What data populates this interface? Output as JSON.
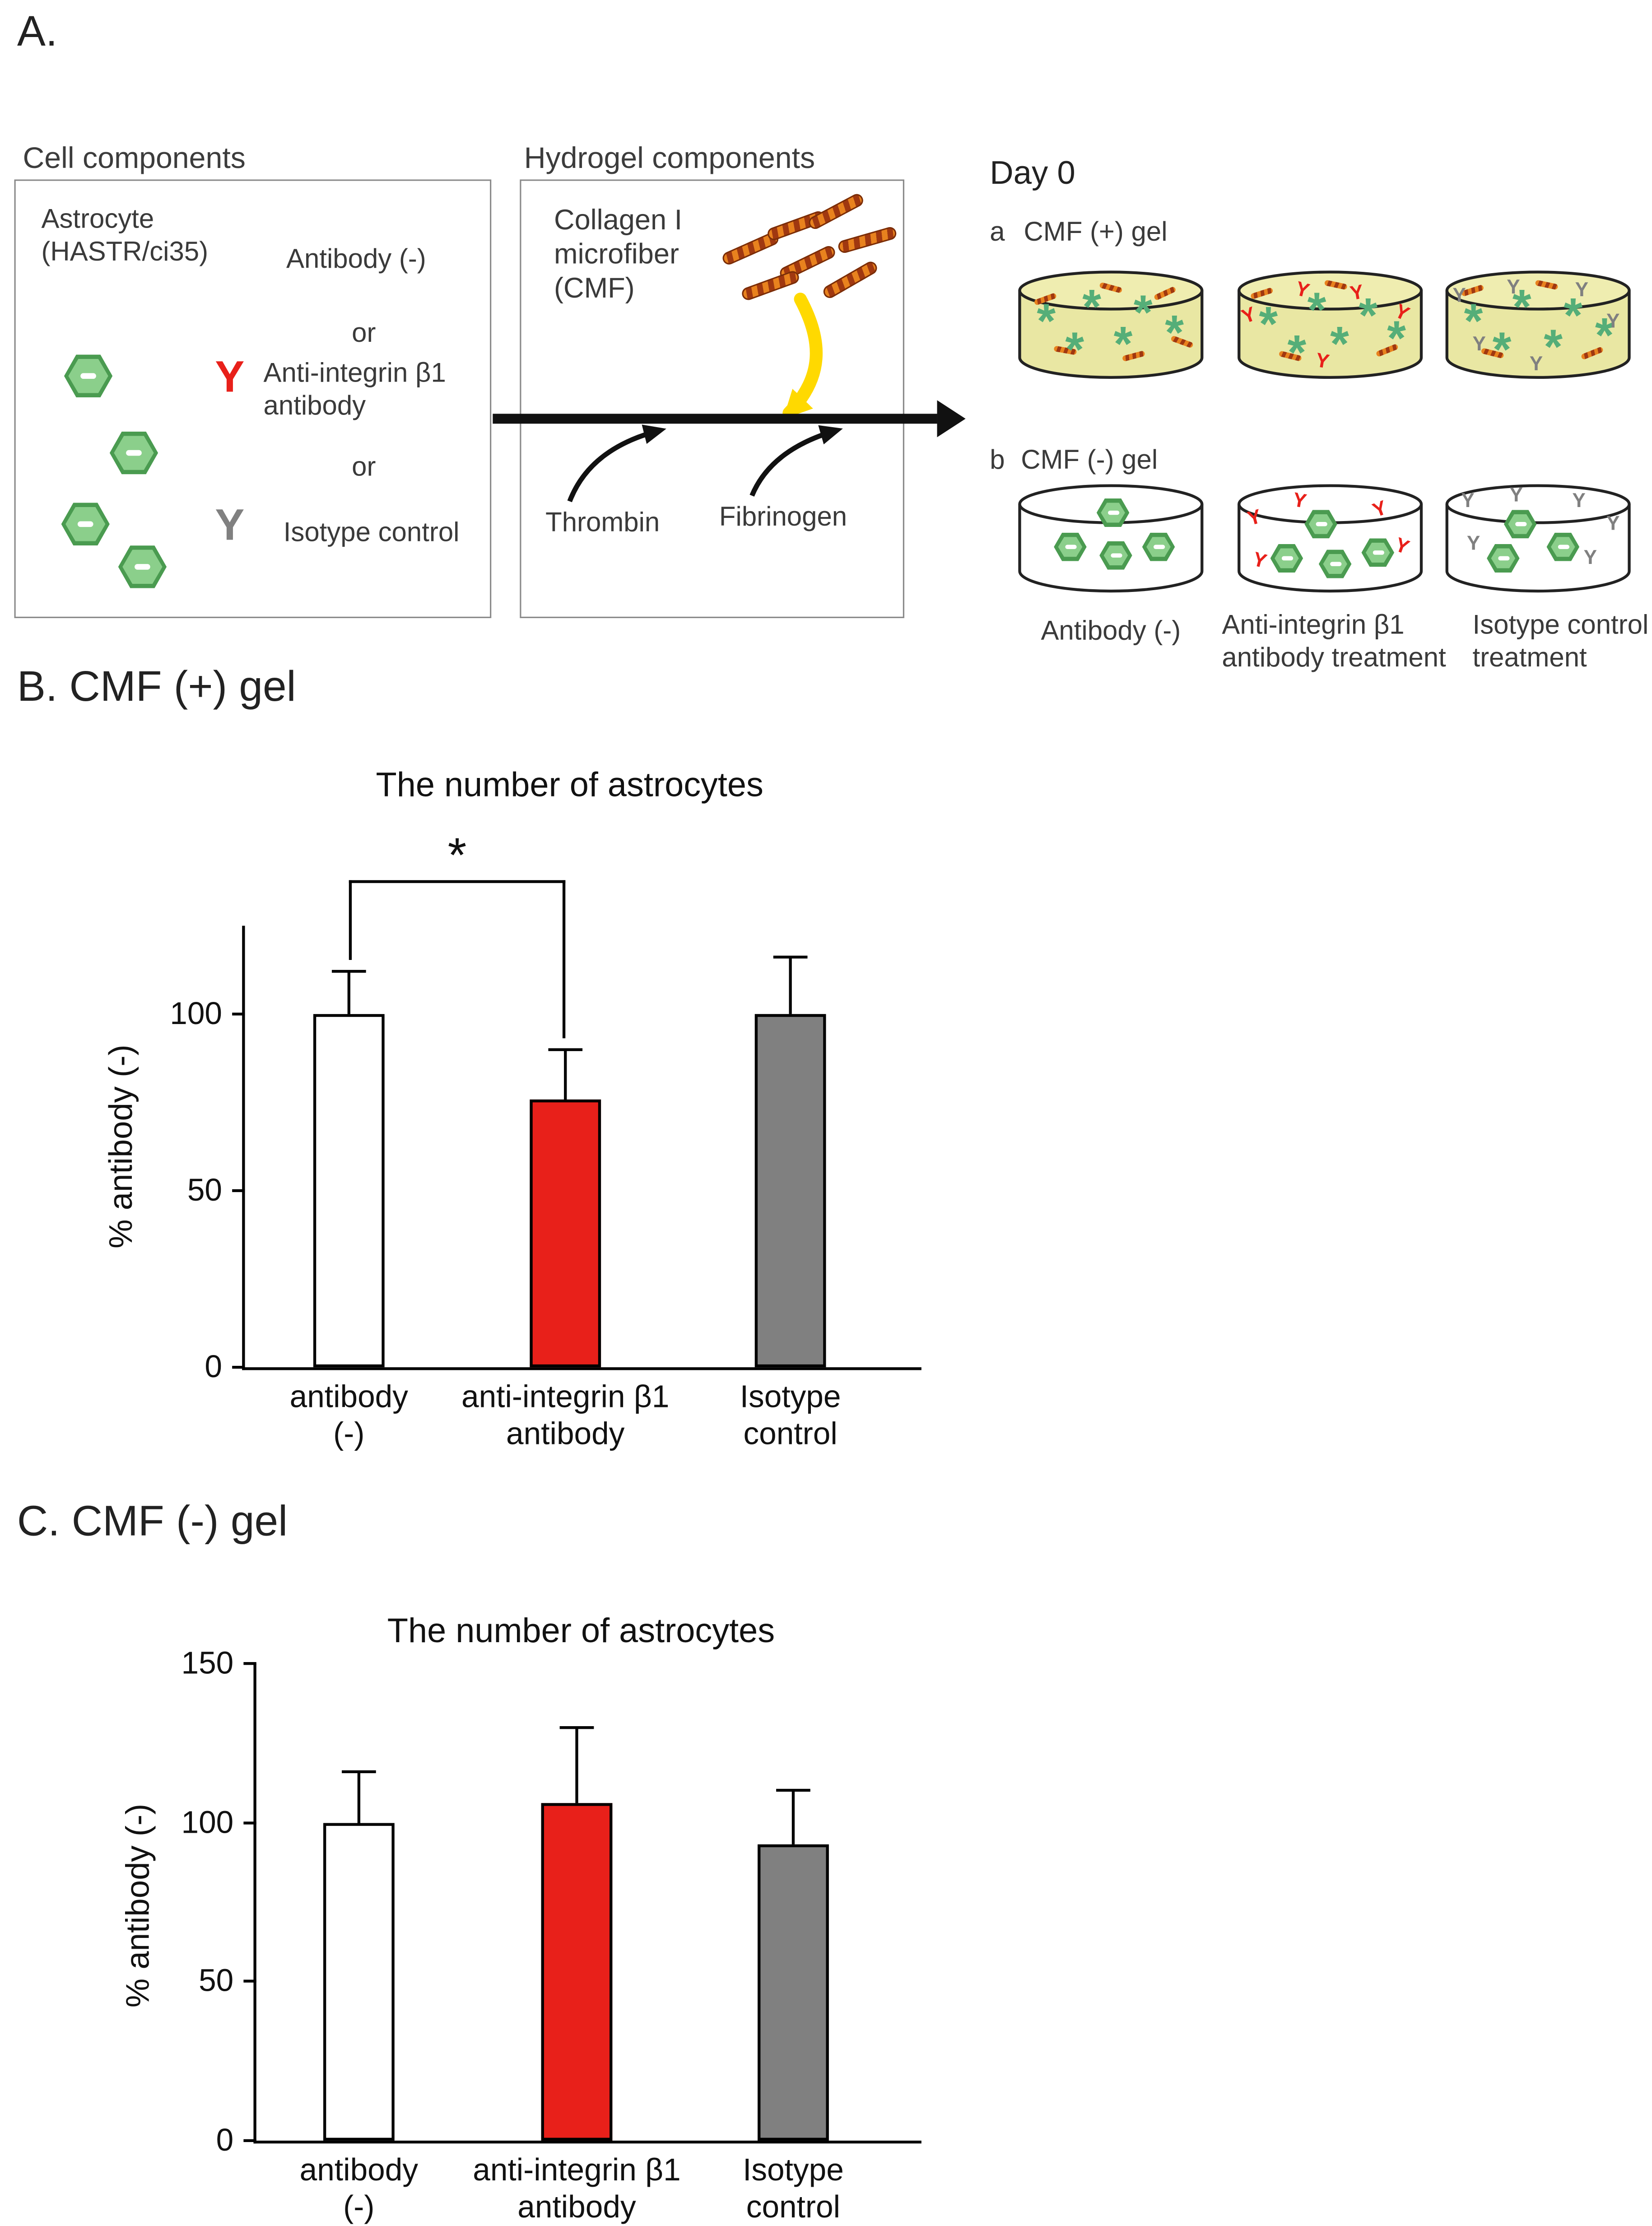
{
  "colors": {
    "accent_red": "#e8201a",
    "accent_gray": "#808080",
    "cell_green": "#8bcf8b",
    "dish_fill": "#e9e7a3",
    "fiber_orange": "#e8821e",
    "arrow_yellow": "#ffd900"
  },
  "panelA": {
    "label": "A.",
    "cell_components": {
      "title": "Cell components",
      "astrocyte_line1": "Astrocyte",
      "astrocyte_line2": "(HASTR/ci35)",
      "antibody_none": "Antibody (-)",
      "or1": "or",
      "antibody_symbol": "Y",
      "anti_integrin_line1": "Anti-integrin β1",
      "anti_integrin_line2": "antibody",
      "or2": "or",
      "isotype_label": "Isotype control"
    },
    "hydrogel_components": {
      "title": "Hydrogel components",
      "collagen_line1": "Collagen I",
      "collagen_line2": "microfiber",
      "collagen_line3": "(CMF)",
      "thrombin": "Thrombin",
      "fibrinogen": "Fibrinogen"
    },
    "day0": {
      "title": "Day 0",
      "row_a_marker": "a",
      "row_a_text": "CMF (+) gel",
      "row_b_marker": "b",
      "row_b_text": "CMF (-) gel",
      "caption1": "Antibody (-)",
      "caption2_line1": "Anti-integrin β1",
      "caption2_line2": "antibody treatment",
      "caption3_line1": "Isotype control",
      "caption3_line2": "treatment"
    }
  },
  "panelB": {
    "label": "B. CMF (+) gel"
  },
  "panelC": {
    "label": "C. CMF (-) gel"
  },
  "chart_data": [
    {
      "id": "CMF_plus_gel",
      "type": "bar",
      "title": "The number of astrocytes",
      "xlabel": "",
      "ylabel": "% antibody (-)",
      "categories": [
        "antibody (-)",
        "anti-integrin β1 antibody",
        "Isotype control"
      ],
      "category_lines": [
        [
          "antibody",
          "(-)"
        ],
        [
          "anti-integrin β1",
          "antibody"
        ],
        [
          "Isotype",
          "control"
        ]
      ],
      "values": [
        100,
        76,
        100
      ],
      "errors": [
        12,
        14,
        16
      ],
      "bar_colors": [
        "#ffffff",
        "#e8201a",
        "#808080"
      ],
      "yticks": [
        0,
        50,
        100
      ],
      "ylim": [
        0,
        125
      ],
      "grid": false,
      "significance": {
        "from": 0,
        "to": 1,
        "label": "*"
      }
    },
    {
      "id": "CMF_minus_gel",
      "type": "bar",
      "title": "The number of astrocytes",
      "xlabel": "",
      "ylabel": "% antibody (-)",
      "categories": [
        "antibody (-)",
        "anti-integrin β1 antibody",
        "Isotype control"
      ],
      "category_lines": [
        [
          "antibody",
          "(-)"
        ],
        [
          "anti-integrin β1",
          "antibody"
        ],
        [
          "Isotype",
          "control"
        ]
      ],
      "values": [
        100,
        106,
        93
      ],
      "errors": [
        16,
        24,
        17
      ],
      "bar_colors": [
        "#ffffff",
        "#e8201a",
        "#808080"
      ],
      "yticks": [
        0,
        50,
        100,
        150
      ],
      "ylim": [
        0,
        150
      ],
      "grid": false
    }
  ]
}
